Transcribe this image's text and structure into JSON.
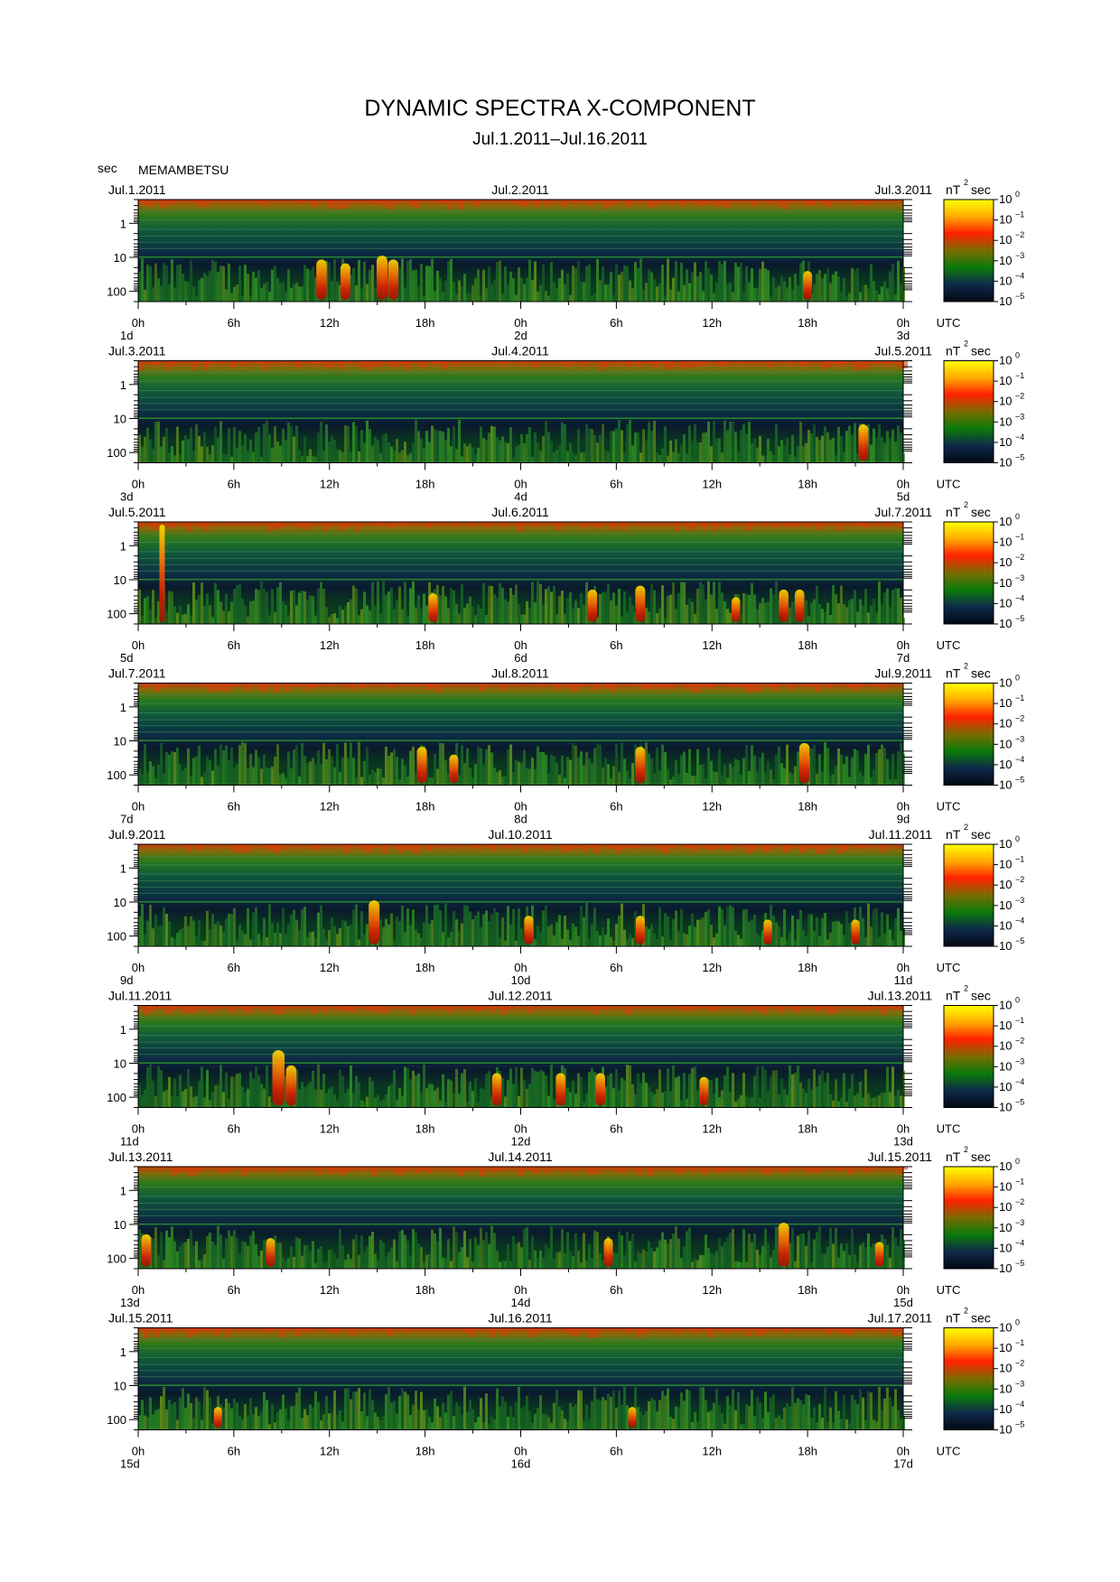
{
  "header": {
    "title": "DYNAMIC SPECTRA X-COMPONENT",
    "date_range": "Jul.1.2011–Jul.16.2011",
    "y_unit": "sec",
    "station": "MEMAMBETSU"
  },
  "colorbar": {
    "unit": "nT",
    "unit_exp": "2",
    "unit_suffix": "sec",
    "tick_base": "10",
    "tick_exponents": [
      "0",
      "−1",
      "−2",
      "−3",
      "−4",
      "−5"
    ],
    "colors": [
      "#ffff00",
      "#ffaa00",
      "#ff2000",
      "#7a6c00",
      "#0a7a0a",
      "#0f2a4a",
      "#000814"
    ]
  },
  "axes": {
    "period_ticks": [
      "1",
      "10",
      "100"
    ],
    "hour_ticks": [
      "0h",
      "6h",
      "12h",
      "18h",
      "0h",
      "6h",
      "12h",
      "18h",
      "0h"
    ],
    "utc_label": "UTC"
  },
  "chart_data": {
    "type": "heatmap",
    "title": "DYNAMIC SPECTRA X-COMPONENT",
    "subtitle": "Jul.1.2011–Jul.16.2011",
    "ylabel": "sec",
    "y_scale": "log",
    "y_range": [
      0.2,
      200
    ],
    "color_scale": "log",
    "color_range": [
      1e-05,
      1
    ],
    "panels": [
      {
        "start_label": "Jul.1.2011",
        "mid_label": "Jul.2.2011",
        "end_label": "Jul.3.2011",
        "days": [
          "1d",
          "2d",
          "3d"
        ],
        "events": [
          {
            "hour": 11.5,
            "level": 0.55
          },
          {
            "hour": 13.0,
            "level": 0.5
          },
          {
            "hour": 15.3,
            "level": 0.6
          },
          {
            "hour": 16.0,
            "level": 0.55
          },
          {
            "hour": 42.0,
            "level": 0.4
          }
        ]
      },
      {
        "start_label": "Jul.3.2011",
        "mid_label": "Jul.4.2011",
        "end_label": "Jul.5.2011",
        "days": [
          "3d",
          "4d",
          "5d"
        ],
        "events": [
          {
            "hour": 45.5,
            "level": 0.5
          }
        ]
      },
      {
        "start_label": "Jul.5.2011",
        "mid_label": "Jul.6.2011",
        "end_label": "Jul.7.2011",
        "days": [
          "5d",
          "6d",
          "7d"
        ],
        "events": [
          {
            "hour": 1.5,
            "level": 1.0
          },
          {
            "hour": 18.5,
            "level": 0.4
          },
          {
            "hour": 28.5,
            "level": 0.45
          },
          {
            "hour": 31.5,
            "level": 0.5
          },
          {
            "hour": 37.5,
            "level": 0.35
          },
          {
            "hour": 40.5,
            "level": 0.45
          },
          {
            "hour": 41.5,
            "level": 0.45
          }
        ]
      },
      {
        "start_label": "Jul.7.2011",
        "mid_label": "Jul.8.2011",
        "end_label": "Jul.9.2011",
        "days": [
          "7d",
          "8d",
          "9d"
        ],
        "events": [
          {
            "hour": 17.8,
            "level": 0.5
          },
          {
            "hour": 19.8,
            "level": 0.4
          },
          {
            "hour": 31.5,
            "level": 0.5
          },
          {
            "hour": 41.8,
            "level": 0.55
          }
        ]
      },
      {
        "start_label": "Jul.9.2011",
        "mid_label": "Jul.10.2011",
        "end_label": "Jul.11.2011",
        "days": [
          "9d",
          "10d",
          "11d"
        ],
        "events": [
          {
            "hour": 14.8,
            "level": 0.6
          },
          {
            "hour": 24.5,
            "level": 0.4
          },
          {
            "hour": 31.5,
            "level": 0.4
          },
          {
            "hour": 39.5,
            "level": 0.35
          },
          {
            "hour": 45.0,
            "level": 0.35
          }
        ]
      },
      {
        "start_label": "Jul.11.2011",
        "mid_label": "Jul.12.2011",
        "end_label": "Jul.13.2011",
        "days": [
          "11d",
          "12d",
          "13d"
        ],
        "events": [
          {
            "hour": 8.8,
            "level": 0.75
          },
          {
            "hour": 9.6,
            "level": 0.55
          },
          {
            "hour": 22.5,
            "level": 0.45
          },
          {
            "hour": 26.5,
            "level": 0.45
          },
          {
            "hour": 29.0,
            "level": 0.45
          },
          {
            "hour": 35.5,
            "level": 0.4
          }
        ]
      },
      {
        "start_label": "Jul.13.2011",
        "mid_label": "Jul.14.2011",
        "end_label": "Jul.15.2011",
        "days": [
          "13d",
          "14d",
          "15d"
        ],
        "events": [
          {
            "hour": 0.5,
            "level": 0.45
          },
          {
            "hour": 8.3,
            "level": 0.4
          },
          {
            "hour": 29.5,
            "level": 0.4
          },
          {
            "hour": 40.5,
            "level": 0.6
          },
          {
            "hour": 46.5,
            "level": 0.35
          }
        ]
      },
      {
        "start_label": "Jul.15.2011",
        "mid_label": "Jul.16.2011",
        "end_label": "Jul.17.2011",
        "days": [
          "15d",
          "16d",
          "17d"
        ],
        "events": [
          {
            "hour": 5.0,
            "level": 0.3
          },
          {
            "hour": 31.0,
            "level": 0.3
          }
        ]
      }
    ]
  }
}
